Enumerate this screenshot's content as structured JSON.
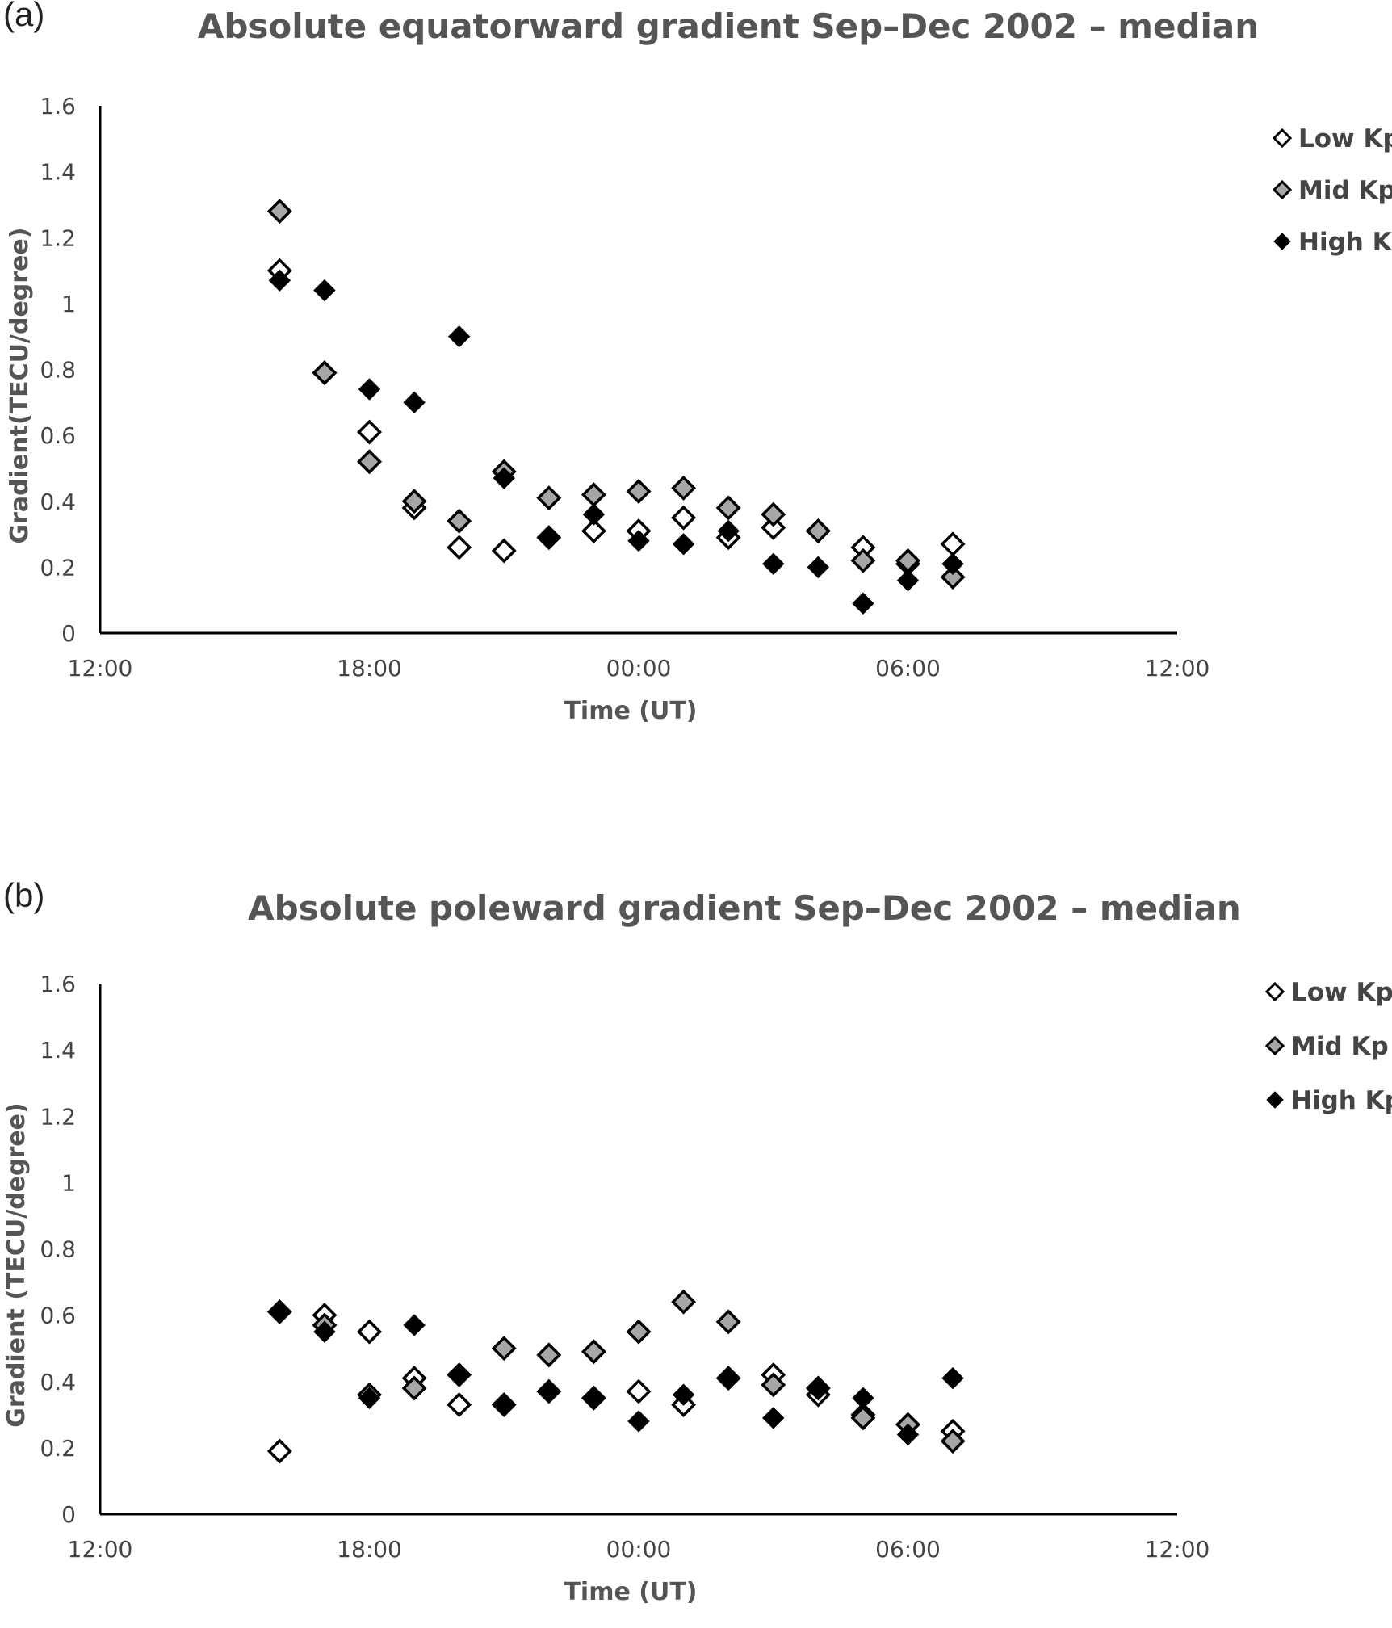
{
  "chart_data": [
    {
      "type": "scatter",
      "panel_label": "(a)",
      "title": "Absolute equatorward gradient Sep–Dec 2002 – median",
      "xlabel": "Time (UT)",
      "ylabel": "Gradient(TECU/degree)",
      "xlim_hours": [
        12,
        36
      ],
      "x_tick_labels": [
        "12:00",
        "18:00",
        "00:00",
        "06:00",
        "12:00"
      ],
      "ylim": [
        0,
        1.6
      ],
      "y_tick_labels": [
        "0",
        "0.2",
        "0.4",
        "0.6",
        "0.8",
        "1",
        "1.2",
        "1.4",
        "1.6"
      ],
      "grid": false,
      "legend_position": "top-right",
      "x": [
        "16:00",
        "17:00",
        "18:00",
        "19:00",
        "20:00",
        "21:00",
        "22:00",
        "23:00",
        "00:00",
        "01:00",
        "02:00",
        "03:00",
        "04:00",
        "05:00",
        "06:00",
        "07:00"
      ],
      "series": [
        {
          "name": "Low Kp",
          "marker": "open-diamond",
          "values": [
            1.1,
            0.79,
            0.61,
            0.38,
            0.26,
            0.25,
            0.29,
            0.31,
            0.31,
            0.35,
            0.29,
            0.32,
            0.31,
            0.26,
            0.21,
            0.27
          ]
        },
        {
          "name": "Mid Kp",
          "marker": "gray-diamond",
          "values": [
            1.28,
            0.79,
            0.52,
            0.4,
            0.34,
            0.49,
            0.41,
            0.42,
            0.43,
            0.44,
            0.38,
            0.36,
            0.31,
            0.22,
            0.22,
            0.17
          ]
        },
        {
          "name": "High Kp",
          "marker": "filled-diamond",
          "values": [
            1.07,
            1.04,
            0.74,
            0.7,
            0.9,
            0.47,
            0.29,
            0.36,
            0.28,
            0.27,
            0.31,
            0.21,
            0.2,
            0.09,
            0.16,
            0.21
          ]
        }
      ]
    },
    {
      "type": "scatter",
      "panel_label": "(b)",
      "title": "Absolute poleward gradient Sep–Dec 2002 – median",
      "xlabel": "Time (UT)",
      "ylabel": "Gradient (TECU/degree)",
      "xlim_hours": [
        12,
        36
      ],
      "x_tick_labels": [
        "12:00",
        "18:00",
        "00:00",
        "06:00",
        "12:00"
      ],
      "ylim": [
        0,
        1.6
      ],
      "y_tick_labels": [
        "0",
        "0.2",
        "0.4",
        "0.6",
        "0.8",
        "1",
        "1.2",
        "1.4",
        "1.6"
      ],
      "grid": false,
      "legend_position": "top-right",
      "x": [
        "16:00",
        "17:00",
        "18:00",
        "19:00",
        "20:00",
        "21:00",
        "22:00",
        "23:00",
        "00:00",
        "01:00",
        "02:00",
        "03:00",
        "04:00",
        "05:00",
        "06:00",
        "07:00"
      ],
      "series": [
        {
          "name": "Low Kp",
          "marker": "open-diamond",
          "values": [
            0.19,
            0.6,
            0.55,
            0.41,
            0.33,
            0.33,
            0.37,
            0.35,
            0.37,
            0.33,
            0.41,
            0.42,
            0.36,
            0.3,
            0.27,
            0.25
          ]
        },
        {
          "name": "Mid Kp",
          "marker": "gray-diamond",
          "values": [
            0.61,
            0.57,
            0.36,
            0.38,
            0.42,
            0.5,
            0.48,
            0.49,
            0.55,
            0.64,
            0.58,
            0.39,
            0.38,
            0.29,
            0.27,
            0.22
          ]
        },
        {
          "name": "High Kp",
          "marker": "filled-diamond",
          "values": [
            0.61,
            0.55,
            0.35,
            0.57,
            0.42,
            0.33,
            0.37,
            0.35,
            0.28,
            0.36,
            0.41,
            0.29,
            0.38,
            0.35,
            0.24,
            0.41
          ]
        }
      ]
    }
  ],
  "colors": {
    "low_fill": "#ffffff",
    "mid_fill": "#a6a6a6",
    "high_fill": "#000000",
    "title": "#555555",
    "axis": "#000000",
    "tick_text": "#444444"
  }
}
